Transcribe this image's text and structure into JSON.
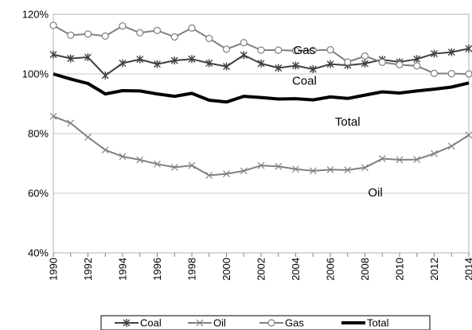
{
  "chart_data": {
    "type": "line",
    "title": "",
    "xlabel": "",
    "ylabel": "",
    "x": [
      1990,
      1991,
      1992,
      1993,
      1994,
      1995,
      1996,
      1997,
      1998,
      1999,
      2000,
      2001,
      2002,
      2003,
      2004,
      2005,
      2006,
      2007,
      2008,
      2009,
      2010,
      2011,
      2012,
      2013,
      2014
    ],
    "x_tick_labels": [
      "1990",
      "1992",
      "1994",
      "1996",
      "1998",
      "2000",
      "2002",
      "2004",
      "2006",
      "2008",
      "2010",
      "2012",
      "2014"
    ],
    "y_tick_labels": [
      "40%",
      "60%",
      "80%",
      "100%",
      "120%"
    ],
    "xlim": [
      1990,
      2014
    ],
    "ylim": [
      40,
      120
    ],
    "y_unit": "%",
    "grid": "horizontal",
    "legend_position": "bottom",
    "series": [
      {
        "name": "Coal",
        "marker": "star",
        "color": "#404040",
        "values": [
          106.5,
          105.2,
          105.6,
          99.5,
          103.6,
          104.9,
          103.3,
          104.5,
          105.0,
          103.6,
          102.5,
          106.3,
          103.5,
          102.0,
          102.8,
          101.6,
          103.3,
          102.9,
          103.5,
          104.8,
          104.0,
          105.0,
          106.8,
          107.3,
          108.5
        ]
      },
      {
        "name": "Oil",
        "marker": "x",
        "color": "#808080",
        "values": [
          85.8,
          83.5,
          78.8,
          74.5,
          72.3,
          71.2,
          69.8,
          68.7,
          69.3,
          66.0,
          66.5,
          67.5,
          69.3,
          69.0,
          68.1,
          67.5,
          67.9,
          67.8,
          68.6,
          71.6,
          71.2,
          71.3,
          73.3,
          75.8,
          79.5
        ]
      },
      {
        "name": "Gas",
        "marker": "circle",
        "color": "#808080",
        "values": [
          116.3,
          113.0,
          113.4,
          112.7,
          116.1,
          113.8,
          114.6,
          112.4,
          115.4,
          111.9,
          108.3,
          110.5,
          108.0,
          108.0,
          107.8,
          107.9,
          108.1,
          104.0,
          106.0,
          103.9,
          103.1,
          102.7,
          100.2,
          100.1,
          100.0
        ]
      },
      {
        "name": "Total",
        "marker": "none",
        "color": "#000000",
        "values": [
          100.0,
          98.3,
          96.8,
          93.3,
          94.4,
          94.3,
          93.3,
          92.5,
          93.5,
          91.2,
          90.6,
          92.5,
          92.1,
          91.6,
          91.7,
          91.3,
          92.3,
          91.8,
          92.9,
          94.0,
          93.6,
          94.3,
          94.9,
          95.6,
          97.0
        ]
      }
    ],
    "annotations": [
      {
        "text": "Gas",
        "x": 2004.5,
        "y": 108.0
      },
      {
        "text": "Coal",
        "x": 2004.5,
        "y": 97.8
      },
      {
        "text": "Total",
        "x": 2007.0,
        "y": 84.0
      },
      {
        "text": "Oil",
        "x": 2008.6,
        "y": 60.3
      }
    ],
    "legend": [
      "Coal",
      "Oil",
      "Gas",
      "Total"
    ]
  }
}
